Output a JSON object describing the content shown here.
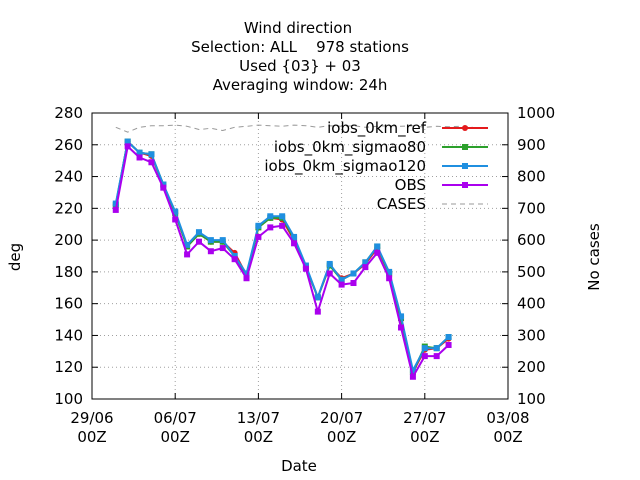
{
  "chart_data": {
    "type": "line",
    "title_lines": [
      "Wind direction",
      "Selection: ALL    978 stations",
      "Used {03} + 03",
      "Averaging window: 24h"
    ],
    "xlabel": "Date",
    "ylabel": "deg",
    "y2label": "No cases",
    "xlim": [
      "2024-06-29",
      "2024-08-03"
    ],
    "x_ticks": [
      {
        "date": "2024-06-29",
        "label1": "29/06",
        "label2": "00Z"
      },
      {
        "date": "2024-07-06",
        "label1": "06/07",
        "label2": "00Z"
      },
      {
        "date": "2024-07-13",
        "label1": "13/07",
        "label2": "00Z"
      },
      {
        "date": "2024-07-20",
        "label1": "20/07",
        "label2": "00Z"
      },
      {
        "date": "2024-07-27",
        "label1": "27/07",
        "label2": "00Z"
      },
      {
        "date": "2024-08-03",
        "label1": "03/08",
        "label2": "00Z"
      }
    ],
    "ylim": [
      100,
      280
    ],
    "y_ticks": [
      "100",
      "120",
      "140",
      "160",
      "180",
      "200",
      "220",
      "240",
      "260",
      "280"
    ],
    "y2lim": [
      100,
      1000
    ],
    "y2_ticks": [
      "100",
      "200",
      "300",
      "400",
      "500",
      "600",
      "700",
      "800",
      "900",
      "1000"
    ],
    "grid": true,
    "legend_position": "top-right",
    "x": [
      "2024-07-01",
      "2024-07-02",
      "2024-07-03",
      "2024-07-04",
      "2024-07-05",
      "2024-07-06",
      "2024-07-07",
      "2024-07-08",
      "2024-07-09",
      "2024-07-10",
      "2024-07-11",
      "2024-07-12",
      "2024-07-13",
      "2024-07-14",
      "2024-07-15",
      "2024-07-16",
      "2024-07-17",
      "2024-07-18",
      "2024-07-19",
      "2024-07-20",
      "2024-07-21",
      "2024-07-22",
      "2024-07-23",
      "2024-07-24",
      "2024-07-25",
      "2024-07-26",
      "2024-07-27",
      "2024-07-28",
      "2024-07-29"
    ],
    "series": [
      {
        "name": "iobs_0km_ref",
        "color": "#e41a1c",
        "marker": "circle",
        "axis": "y",
        "values": [
          222,
          262,
          255,
          253,
          235,
          217,
          196,
          204,
          199,
          199,
          192,
          178,
          208,
          214,
          213,
          200,
          183,
          164,
          184,
          176,
          179,
          185,
          195,
          179,
          150,
          117,
          131,
          132,
          138
        ]
      },
      {
        "name": "iobs_0km_sigmao80",
        "color": "#2ca02c",
        "marker": "square",
        "axis": "y",
        "values": [
          222,
          262,
          255,
          254,
          235,
          217,
          196,
          204,
          199,
          199,
          190,
          178,
          208,
          214,
          214,
          201,
          183,
          164,
          184,
          175,
          179,
          186,
          196,
          179,
          151,
          117,
          133,
          132,
          139
        ]
      },
      {
        "name": "iobs_0km_sigmao120",
        "color": "#1f8fe0",
        "marker": "square",
        "axis": "y",
        "values": [
          223,
          262,
          255,
          254,
          235,
          218,
          197,
          205,
          200,
          200,
          190,
          179,
          209,
          215,
          215,
          202,
          184,
          164,
          185,
          175,
          179,
          186,
          196,
          180,
          152,
          118,
          132,
          132,
          139
        ]
      },
      {
        "name": "OBS",
        "color": "#aa00ee",
        "marker": "square",
        "axis": "y",
        "values": [
          219,
          259,
          252,
          249,
          233,
          213,
          191,
          199,
          193,
          195,
          188,
          176,
          202,
          208,
          209,
          198,
          182,
          155,
          179,
          172,
          173,
          183,
          192,
          176,
          145,
          114,
          127,
          127,
          134
        ]
      },
      {
        "name": "CASES",
        "color": "#999999",
        "dash": "dashed",
        "axis": "y2",
        "x": [
          "2024-07-01",
          "2024-07-02",
          "2024-07-03",
          "2024-07-04",
          "2024-07-05",
          "2024-07-06",
          "2024-07-07",
          "2024-07-08",
          "2024-07-09",
          "2024-07-10",
          "2024-07-11",
          "2024-07-12",
          "2024-07-13",
          "2024-07-14",
          "2024-07-15",
          "2024-07-16",
          "2024-07-17",
          "2024-07-18",
          "2024-07-19",
          "2024-07-20",
          "2024-07-21",
          "2024-07-22",
          "2024-07-23",
          "2024-07-24",
          "2024-07-25",
          "2024-07-26",
          "2024-07-27",
          "2024-07-28",
          "2024-07-29",
          "2024-07-30",
          "2024-07-31"
        ],
        "values": [
          955,
          940,
          955,
          960,
          960,
          962,
          958,
          948,
          952,
          945,
          955,
          958,
          962,
          960,
          958,
          962,
          960,
          955,
          960,
          958,
          960,
          955,
          958,
          960,
          958,
          960,
          955,
          958,
          957,
          958,
          956
        ]
      }
    ]
  }
}
